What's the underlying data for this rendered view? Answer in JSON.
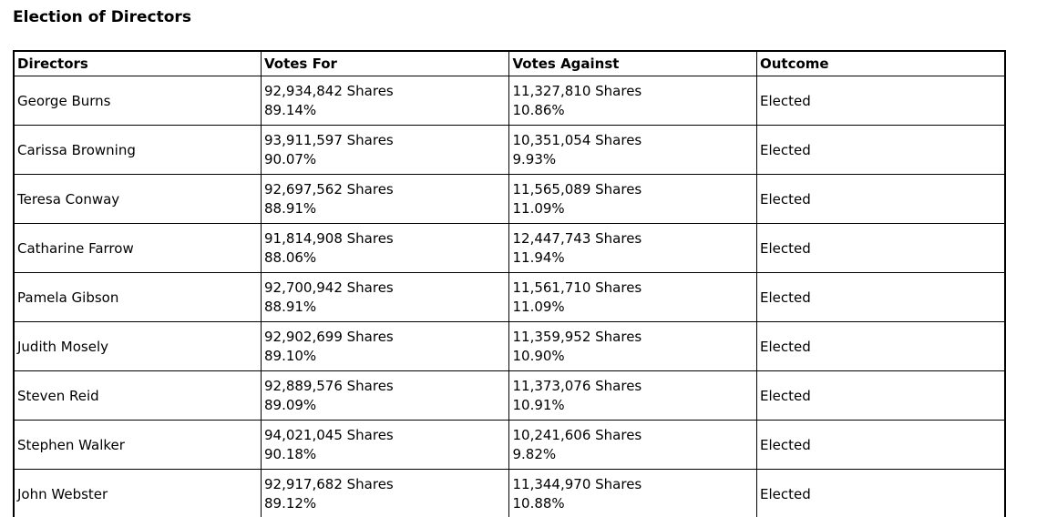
{
  "page": {
    "title": "Election of Directors"
  },
  "colors": {
    "text": "#000000",
    "border": "#000000",
    "background": "#ffffff"
  },
  "table": {
    "headers": [
      "Directors",
      "Votes For",
      "Votes Against",
      "Outcome"
    ],
    "rows": [
      {
        "director": "George Burns",
        "votes_for_shares": "92,934,842 Shares",
        "votes_for_pct": "89.14%",
        "votes_against_shares": "11,327,810 Shares",
        "votes_against_pct": "10.86%",
        "outcome": "Elected"
      },
      {
        "director": "Carissa Browning",
        "votes_for_shares": "93,911,597 Shares",
        "votes_for_pct": "90.07%",
        "votes_against_shares": "10,351,054 Shares",
        "votes_against_pct": "9.93%",
        "outcome": "Elected"
      },
      {
        "director": "Teresa Conway",
        "votes_for_shares": "92,697,562 Shares",
        "votes_for_pct": "88.91%",
        "votes_against_shares": "11,565,089 Shares",
        "votes_against_pct": "11.09%",
        "outcome": "Elected"
      },
      {
        "director": "Catharine Farrow",
        "votes_for_shares": "91,814,908 Shares",
        "votes_for_pct": "88.06%",
        "votes_against_shares": "12,447,743 Shares",
        "votes_against_pct": "11.94%",
        "outcome": "Elected"
      },
      {
        "director": "Pamela Gibson",
        "votes_for_shares": "92,700,942 Shares",
        "votes_for_pct": "88.91%",
        "votes_against_shares": "11,561,710 Shares",
        "votes_against_pct": "11.09%",
        "outcome": "Elected"
      },
      {
        "director": "Judith Mosely",
        "votes_for_shares": "92,902,699 Shares",
        "votes_for_pct": "89.10%",
        "votes_against_shares": "11,359,952 Shares",
        "votes_against_pct": "10.90%",
        "outcome": "Elected"
      },
      {
        "director": "Steven Reid",
        "votes_for_shares": "92,889,576 Shares",
        "votes_for_pct": "89.09%",
        "votes_against_shares": "11,373,076 Shares",
        "votes_against_pct": "10.91%",
        "outcome": "Elected"
      },
      {
        "director": "Stephen Walker",
        "votes_for_shares": "94,021,045 Shares",
        "votes_for_pct": "90.18%",
        "votes_against_shares": "10,241,606 Shares",
        "votes_against_pct": "9.82%",
        "outcome": "Elected"
      },
      {
        "director": "John Webster",
        "votes_for_shares": "92,917,682 Shares",
        "votes_for_pct": "89.12%",
        "votes_against_shares": "11,344,970 Shares",
        "votes_against_pct": "10.88%",
        "outcome": "Elected"
      }
    ]
  }
}
